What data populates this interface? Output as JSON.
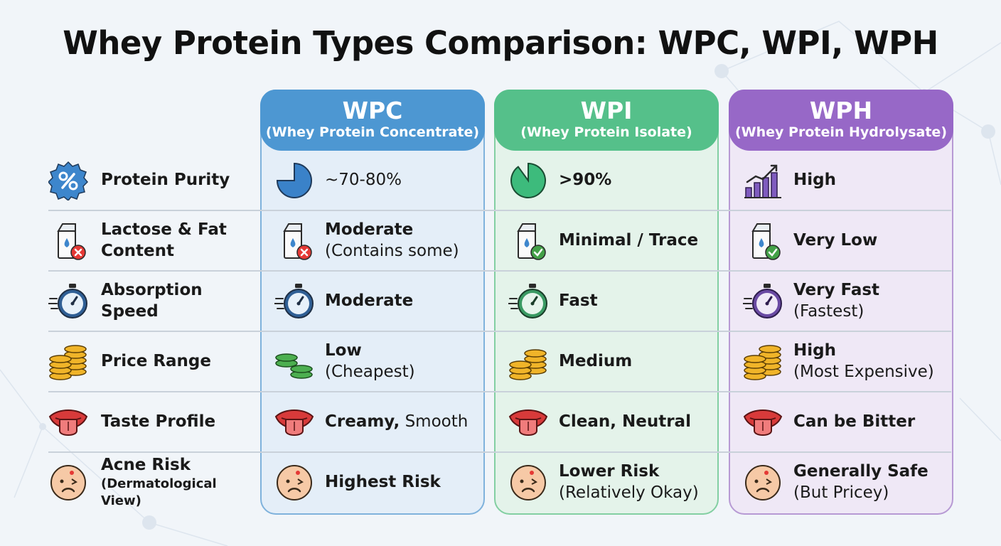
{
  "title": "Whey Protein Types Comparison: WPC, WPI, WPH",
  "columns": [
    {
      "abbr": "WPC",
      "full": "(Whey Protein Concentrate)",
      "accent": "#4d97d2"
    },
    {
      "abbr": "WPI",
      "full": "(Whey Protein Isolate)",
      "accent": "#55c08a"
    },
    {
      "abbr": "WPH",
      "full": "(Whey Protein Hydrolysate)",
      "accent": "#9768c7"
    }
  ],
  "criteria": [
    {
      "label": "Protein Purity",
      "icon": "percent-badge-icon"
    },
    {
      "label": "Lactose & Fat",
      "label2": "Content",
      "icon": "milk-carton-x-icon"
    },
    {
      "label": "Absorption",
      "label2": "Speed",
      "icon": "stopwatch-icon"
    },
    {
      "label": "Price Range",
      "icon": "coins-icon"
    },
    {
      "label": "Taste Profile",
      "icon": "tongue-icon"
    },
    {
      "label": "Acne Risk",
      "sub": "(Dermatological View)",
      "icon": "acne-face-icon"
    }
  ],
  "wpc": {
    "purity": "~70-80%",
    "lactose": {
      "main": "Moderate",
      "sub": "(Contains some)"
    },
    "absorption": "Moderate",
    "price": {
      "main": "Low",
      "sub": "(Cheapest)"
    },
    "taste": {
      "main": "Creamy,",
      "rest": " Smooth"
    },
    "acne": "Highest Risk"
  },
  "wpi": {
    "purity": ">90%",
    "lactose": "Minimal / Trace",
    "absorption": "Fast",
    "price": "Medium",
    "taste": "Clean, Neutral",
    "acne": {
      "main": "Lower Risk",
      "sub": "(Relatively Okay)"
    }
  },
  "wph": {
    "purity": "High",
    "lactose": "Very Low",
    "absorption": {
      "main": "Very Fast",
      "sub": "(Fastest)"
    },
    "price": {
      "main": "High",
      "sub": "(Most Expensive)"
    },
    "taste": "Can be Bitter",
    "acne": {
      "main": "Generally Safe",
      "sub": "(But Pricey)"
    }
  },
  "colors": {
    "purity_wpc": "#3a82c9",
    "purity_wpi": "#3dbb7c",
    "bars_wph": "#7f5bbf",
    "coins_gold": "#f0b429",
    "coins_green": "#4caf50"
  }
}
